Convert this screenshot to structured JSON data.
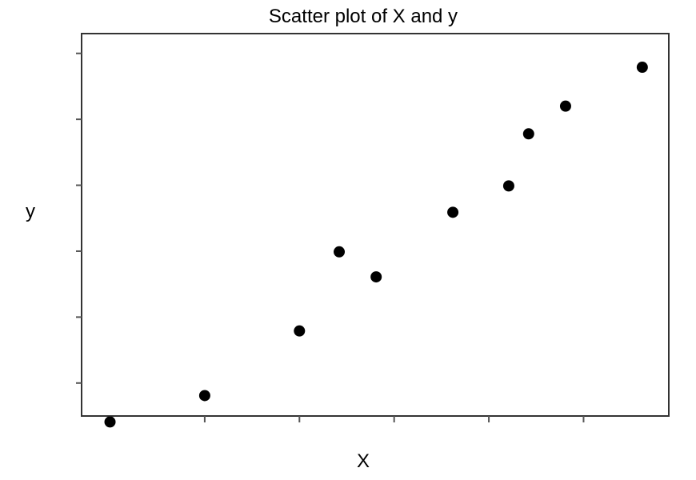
{
  "chart_data": {
    "type": "scatter",
    "title": "Scatter plot of X and y",
    "xlabel": "X",
    "ylabel": "y",
    "xlim": [
      -0.3,
      5.9
    ],
    "ylim": [
      -0.5,
      5.3
    ],
    "x_ticks": [
      0,
      1,
      2,
      3,
      4,
      5
    ],
    "y_ticks": [
      0,
      1,
      2,
      3,
      4,
      5
    ],
    "tick_labels_visible": false,
    "grid": false,
    "legend": "none",
    "series": [
      {
        "points": [
          {
            "x": 0.0,
            "y": -0.59
          },
          {
            "x": 1.0,
            "y": -0.19
          },
          {
            "x": 2.0,
            "y": 0.79
          },
          {
            "x": 2.42,
            "y": 1.99
          },
          {
            "x": 2.81,
            "y": 1.61
          },
          {
            "x": 3.62,
            "y": 2.59
          },
          {
            "x": 4.21,
            "y": 2.99
          },
          {
            "x": 4.42,
            "y": 3.78
          },
          {
            "x": 4.81,
            "y": 4.2
          },
          {
            "x": 5.62,
            "y": 4.79
          }
        ],
        "color": "#000000"
      }
    ]
  }
}
